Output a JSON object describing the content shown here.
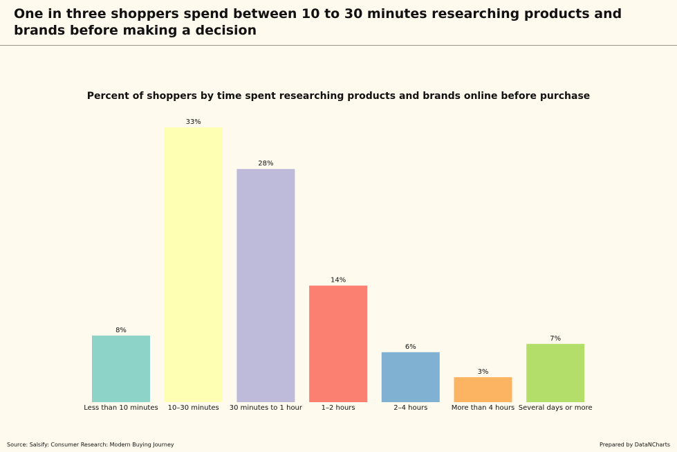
{
  "header": {
    "title": "One in three shoppers spend between 10 to 30 minutes researching products and brands before making a decision"
  },
  "footer": {
    "source": "Source: Salsify: Consumer Research: Modern Buying Journey",
    "credit": "Prepared by DataNCharts"
  },
  "chart_data": {
    "type": "bar",
    "title": "Percent of shoppers by time spent researching products and brands online before purchase",
    "categories": [
      "Less than 10 minutes",
      "10–30 minutes",
      "30 minutes to 1 hour",
      "1–2 hours",
      "2–4 hours",
      "More than 4 hours",
      "Several days or more"
    ],
    "values": [
      8,
      33,
      28,
      14,
      6,
      3,
      7
    ],
    "value_labels": [
      "8%",
      "33%",
      "28%",
      "14%",
      "6%",
      "3%",
      "7%"
    ],
    "colors": [
      "#8dd3c7",
      "#ffffb3",
      "#bebada",
      "#fb8072",
      "#80b1d3",
      "#fdb462",
      "#b3de69"
    ],
    "ylim": [
      0,
      33
    ],
    "grid": false,
    "legend": "none"
  }
}
